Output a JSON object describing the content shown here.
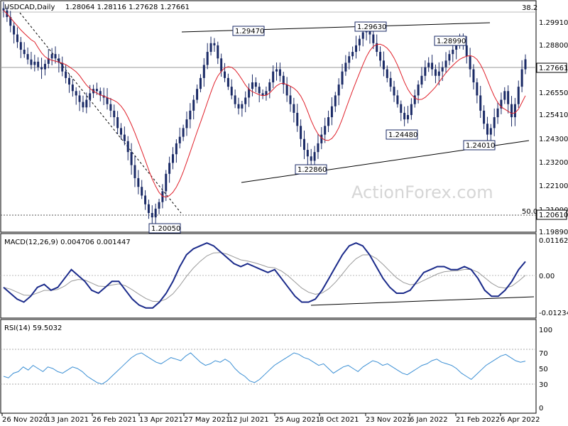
{
  "header": {
    "symbol": "USDCAD,Daily",
    "ohlc": "1.28064 1.28116 1.27628 1.27661"
  },
  "watermark": "ActionForex.com",
  "colors": {
    "candle": "#1a2a66",
    "ma": "#e0202a",
    "macd_line": "#1a2a8a",
    "signal": "#999999",
    "rsi": "#3b8fd4",
    "price_tag": "#ffffff"
  },
  "chart_data": [
    {
      "type": "candlestick",
      "panel": "price",
      "title": "USDCAD,Daily",
      "ohlc_last": [
        1.28064,
        1.28116,
        1.27628,
        1.27661
      ],
      "current_price": "1.27661",
      "y_ticks": [
        "1.29910",
        "1.28800",
        "1.27661",
        "1.26550",
        "1.25410",
        "1.24300",
        "1.23200",
        "1.22100",
        "1.21000",
        "1.20610",
        "1.19890"
      ],
      "x_ticks": [
        "26 Nov 2020",
        "13 Jan 2021",
        "26 Feb 2021",
        "13 Apr 2021",
        "27 May 2021",
        "12 Jul 2021",
        "25 Aug 2021",
        "8 Oct 2021",
        "23 Nov 2021",
        "6 Jan 2022",
        "21 Feb 2022",
        "6 Apr 2022"
      ],
      "fib_levels": [
        {
          "label": "38.2",
          "value": 1.302
        },
        {
          "label": "50.0",
          "value": 1.2061
        }
      ],
      "annotations": [
        "1.29470",
        "1.29630",
        "1.28990",
        "1.24480",
        "1.24010",
        "1.22860",
        "1.20050"
      ],
      "closes": [
        1.299,
        1.296,
        1.292,
        1.288,
        1.2845,
        1.281,
        1.279,
        1.2765,
        1.274,
        1.2755,
        1.273,
        1.272,
        1.2745,
        1.277,
        1.279,
        1.277,
        1.275,
        1.271,
        1.268,
        1.265,
        1.262,
        1.26,
        1.257,
        1.2545,
        1.258,
        1.261,
        1.263,
        1.262,
        1.26,
        1.259,
        1.256,
        1.253,
        1.25,
        1.245,
        1.242,
        1.239,
        1.234,
        1.228,
        1.222,
        1.218,
        1.214,
        1.21,
        1.206,
        1.204,
        1.208,
        1.211,
        1.216,
        1.224,
        1.229,
        1.233,
        1.238,
        1.241,
        1.245,
        1.249,
        1.253,
        1.258,
        1.263,
        1.268,
        1.274,
        1.28,
        1.284,
        1.283,
        1.277,
        1.271,
        1.268,
        1.264,
        1.26,
        1.256,
        1.254,
        1.256,
        1.259,
        1.263,
        1.266,
        1.264,
        1.261,
        1.26,
        1.262,
        1.266,
        1.271,
        1.272,
        1.269,
        1.265,
        1.26,
        1.256,
        1.252,
        1.246,
        1.24,
        1.235,
        1.232,
        1.23,
        1.234,
        1.238,
        1.242,
        1.246,
        1.25,
        1.255,
        1.26,
        1.265,
        1.271,
        1.275,
        1.278,
        1.28,
        1.283,
        1.286,
        1.289,
        1.291,
        1.288,
        1.284,
        1.28,
        1.276,
        1.272,
        1.268,
        1.264,
        1.26,
        1.256,
        1.252,
        1.249,
        1.251,
        1.256,
        1.26,
        1.265,
        1.269,
        1.273,
        1.275,
        1.272,
        1.269,
        1.271,
        1.273,
        1.276,
        1.279,
        1.281,
        1.284,
        1.286,
        1.283,
        1.278,
        1.272,
        1.266,
        1.26,
        1.253,
        1.247,
        1.242,
        1.245,
        1.25,
        1.254,
        1.258,
        1.262,
        1.256,
        1.25,
        1.256,
        1.264,
        1.272,
        1.2766
      ],
      "ma_period": "approx. 20-day smoothing",
      "ylim": [
        1.1972,
        1.3035
      ]
    },
    {
      "type": "line",
      "panel": "macd",
      "title": "MACD(12,26,9) 0.004706 0.001447",
      "series": [
        {
          "name": "MACD"
        },
        {
          "name": "Signal"
        }
      ],
      "y_ticks": [
        "0.011629",
        "0.00",
        "-0.012348"
      ],
      "macd": [
        -0.004,
        -0.006,
        -0.008,
        -0.009,
        -0.007,
        -0.004,
        -0.003,
        -0.005,
        -0.004,
        -0.001,
        0.002,
        0.0,
        -0.002,
        -0.005,
        -0.006,
        -0.004,
        -0.002,
        -0.002,
        -0.005,
        -0.008,
        -0.01,
        -0.011,
        -0.011,
        -0.009,
        -0.006,
        -0.002,
        0.003,
        0.007,
        0.009,
        0.01,
        0.011,
        0.01,
        0.008,
        0.006,
        0.004,
        0.003,
        0.004,
        0.003,
        0.002,
        0.001,
        0.002,
        -0.001,
        -0.004,
        -0.007,
        -0.009,
        -0.009,
        -0.008,
        -0.005,
        -0.001,
        0.003,
        0.007,
        0.01,
        0.011,
        0.01,
        0.007,
        0.003,
        -0.001,
        -0.004,
        -0.006,
        -0.006,
        -0.005,
        -0.002,
        0.001,
        0.002,
        0.003,
        0.003,
        0.002,
        0.002,
        0.003,
        0.002,
        -0.001,
        -0.005,
        -0.007,
        -0.007,
        -0.005,
        -0.002,
        0.002,
        0.0047
      ]
    },
    {
      "type": "line",
      "panel": "rsi",
      "title": "RSI(14) 59.5032",
      "series": [
        {
          "name": "RSI(14)"
        }
      ],
      "y_ticks": [
        "100",
        "70",
        "50",
        "30",
        "0"
      ],
      "levels": [
        70,
        30
      ],
      "rsi": [
        40,
        38,
        44,
        46,
        52,
        48,
        54,
        50,
        46,
        52,
        50,
        46,
        44,
        48,
        52,
        50,
        46,
        40,
        36,
        32,
        30,
        34,
        40,
        46,
        52,
        58,
        64,
        68,
        70,
        66,
        62,
        58,
        56,
        60,
        64,
        62,
        60,
        66,
        70,
        64,
        58,
        54,
        56,
        60,
        58,
        62,
        58,
        50,
        44,
        40,
        34,
        32,
        36,
        42,
        48,
        54,
        58,
        62,
        66,
        70,
        68,
        64,
        62,
        58,
        54,
        56,
        50,
        44,
        48,
        52,
        54,
        50,
        46,
        52,
        56,
        60,
        58,
        54,
        56,
        52,
        48,
        44,
        42,
        46,
        50,
        54,
        56,
        60,
        62,
        58,
        56,
        54,
        50,
        44,
        40,
        36,
        42,
        48,
        54,
        58,
        62,
        66,
        68,
        64,
        60,
        58,
        59.5
      ]
    }
  ]
}
